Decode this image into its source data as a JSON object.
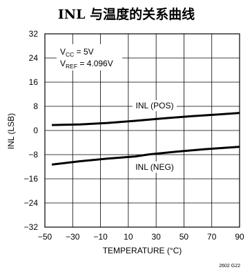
{
  "chart_data": {
    "type": "line",
    "title": "INL 与温度的关系曲线",
    "xlabel": "TEMPERATURE (°C)",
    "ylabel": "INL (LSB)",
    "xlim": [
      -50,
      90
    ],
    "ylim": [
      -32,
      32
    ],
    "x_ticks": [
      "−50",
      "−30",
      "−10",
      "10",
      "30",
      "50",
      "70",
      "90"
    ],
    "x_tick_values": [
      -50,
      -30,
      -10,
      10,
      30,
      50,
      70,
      90
    ],
    "y_ticks": [
      "32",
      "24",
      "16",
      "8",
      "0",
      "−8",
      "−16",
      "−24",
      "−32"
    ],
    "y_tick_values": [
      32,
      24,
      16,
      8,
      0,
      -8,
      -16,
      -24,
      -32
    ],
    "grid": true,
    "series": [
      {
        "name": "INL (POS)",
        "x": [
          -45,
          -25,
          -5,
          15,
          35,
          55,
          75,
          90
        ],
        "y": [
          1.8,
          2.0,
          2.5,
          3.2,
          4.0,
          4.7,
          5.3,
          5.8
        ]
      },
      {
        "name": "INL (NEG)",
        "x": [
          -45,
          -25,
          -5,
          15,
          25,
          45,
          65,
          90
        ],
        "y": [
          -11.3,
          -10.2,
          -9.3,
          -8.6,
          -7.9,
          -7.0,
          -6.2,
          -5.4
        ]
      }
    ],
    "annotations": {
      "vcc_main": "V",
      "vcc_sub": "CC",
      "vcc_val": " = 5V",
      "vref_main": "V",
      "vref_sub": "REF",
      "vref_val": " = 4.096V"
    },
    "figure_id": "2602 G22"
  }
}
